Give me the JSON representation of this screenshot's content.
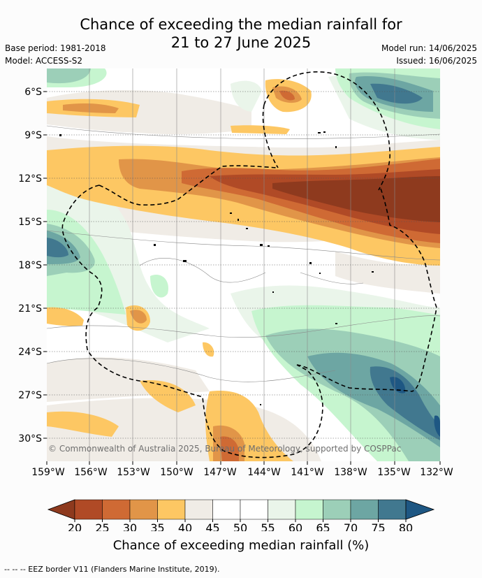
{
  "title": {
    "line1": "Chance of exceeding the median rainfall for",
    "line2": "21 to 27 June 2025"
  },
  "meta": {
    "base_period": "Base period: 1981-2018",
    "model": "Model: ACCESS-S2",
    "model_run": "Model run: 14/06/2025",
    "issued": "Issued: 16/06/2025"
  },
  "map": {
    "lat_labels": [
      "6°S",
      "9°S",
      "12°S",
      "15°S",
      "18°S",
      "21°S",
      "24°S",
      "27°S",
      "30°S"
    ],
    "lon_labels": [
      "159°W",
      "156°W",
      "153°W",
      "150°W",
      "147°W",
      "144°W",
      "141°W",
      "138°W",
      "135°W",
      "132°W"
    ],
    "copyright": "© Commonwealth of Australia 2025, Bureau of Meteorology, supported by COSPPac"
  },
  "colorbar": {
    "ticks": [
      "20",
      "25",
      "30",
      "35",
      "40",
      "45",
      "50",
      "55",
      "60",
      "65",
      "70",
      "75",
      "80"
    ],
    "colors": [
      "#8e3a1e",
      "#b04a26",
      "#cf6a34",
      "#e19548",
      "#fdc763",
      "#f0ece6",
      "#ffffff",
      "#ffffff",
      "#eaf5ea",
      "#c6f5cf",
      "#9ccfb8",
      "#6da6a3",
      "#41788f",
      "#1e5783"
    ],
    "label": "Chance of exceeding median rainfall (%)"
  },
  "footnote": "-- -- -- EEZ border V11 (Flanders Marine Institute, 2019)."
}
